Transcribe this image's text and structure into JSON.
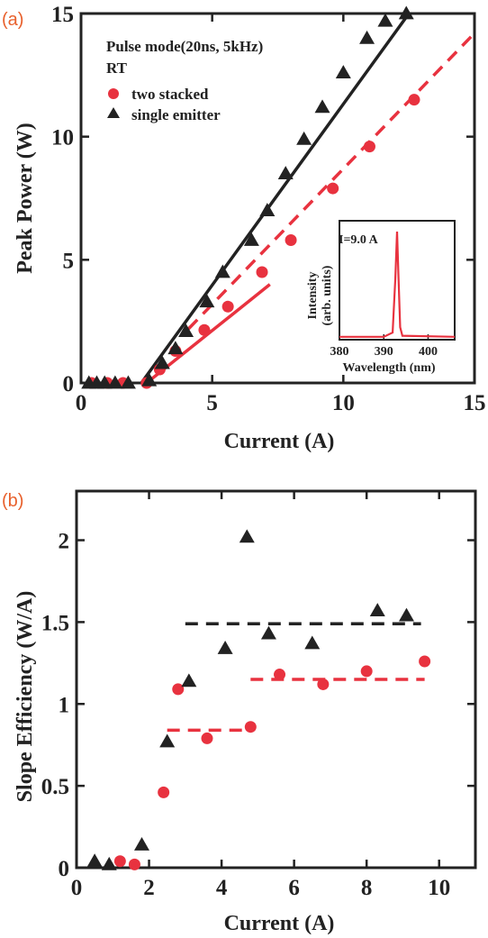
{
  "colors": {
    "red": "#e8323f",
    "black": "#222222",
    "panel_label": "#e8602c"
  },
  "chart_data": [
    {
      "type": "scatter",
      "panel_label": "(a)",
      "xlabel": "Current (A)",
      "ylabel": "Peak Power (W)",
      "xlim": [
        0,
        15
      ],
      "ylim": [
        0,
        15
      ],
      "xticks": [
        0,
        5,
        10,
        15
      ],
      "yticks": [
        0,
        5,
        10,
        15
      ],
      "annotations": [
        "Pulse mode(20ns, 5kHz)",
        "RT"
      ],
      "series": [
        {
          "name": "two stacked",
          "marker": "circle",
          "color": "#e8323f",
          "x": [
            0.4,
            1.0,
            1.6,
            2.5,
            3.0,
            3.6,
            4.7,
            5.6,
            6.9,
            8.0,
            9.6,
            11.0,
            12.7
          ],
          "y": [
            0,
            0,
            0,
            0,
            0.55,
            1.3,
            2.15,
            3.1,
            4.5,
            5.8,
            7.9,
            9.6,
            11.5
          ]
        },
        {
          "name": "single emitter",
          "marker": "triangle",
          "color": "#222222",
          "x": [
            0.3,
            0.6,
            0.9,
            1.3,
            1.8,
            2.6,
            3.1,
            3.6,
            4.0,
            4.8,
            5.4,
            6.5,
            7.1,
            7.8,
            8.5,
            9.2,
            10.0,
            10.9,
            11.6,
            12.4
          ],
          "y": [
            0,
            0,
            0,
            0,
            0,
            0.1,
            0.8,
            1.4,
            2.1,
            3.3,
            4.5,
            5.8,
            7.0,
            8.5,
            9.9,
            11.2,
            12.6,
            14.0,
            14.7,
            15.0
          ]
        }
      ],
      "fit_lines": [
        {
          "series": "single emitter",
          "style": "solid",
          "color": "#222222",
          "x": [
            2.3,
            12.5
          ],
          "y": [
            0,
            15.0
          ]
        },
        {
          "series": "two stacked",
          "style": "solid",
          "color": "#e8323f",
          "x": [
            2.5,
            7.2
          ],
          "y": [
            0,
            4.0
          ]
        },
        {
          "series": "two stacked",
          "style": "dashed",
          "color": "#e8323f",
          "x": [
            4.1,
            15.0
          ],
          "y": [
            2.2,
            14.2
          ]
        }
      ],
      "inset": {
        "annotation": "I=9.0 A",
        "xlabel": "Wavelength (nm)",
        "ylabel_line1": "Intensity",
        "ylabel_line2": "(arb. units)",
        "xlim": [
          380,
          406
        ],
        "xticks": [
          380,
          390,
          400
        ],
        "spectrum": {
          "x": [
            380,
            390,
            392,
            392.6,
            393.0,
            393.3,
            393.7,
            394.2,
            406
          ],
          "y": [
            0.01,
            0.01,
            0.05,
            0.55,
            1.0,
            0.6,
            0.1,
            0.02,
            0.01
          ]
        }
      }
    },
    {
      "type": "scatter",
      "panel_label": "(b)",
      "xlabel": "Current (A)",
      "ylabel": "Slope Efficiency (W/A)",
      "xlim": [
        0,
        11
      ],
      "ylim": [
        0,
        2.3
      ],
      "xticks": [
        0,
        2,
        4,
        6,
        8,
        10
      ],
      "yticks": [
        0,
        0.5,
        1,
        1.5,
        2
      ],
      "ytick_labels": [
        "0",
        "0.5",
        "1",
        "1.5",
        "2"
      ],
      "series": [
        {
          "name": "two stacked",
          "marker": "circle",
          "color": "#e8323f",
          "x": [
            1.2,
            1.6,
            2.4,
            2.8,
            3.6,
            4.8,
            5.6,
            6.8,
            8.0,
            9.6
          ],
          "y": [
            0.04,
            0.02,
            0.46,
            1.09,
            0.79,
            0.86,
            1.18,
            1.12,
            1.2,
            1.26
          ]
        },
        {
          "name": "single emitter",
          "marker": "triangle",
          "color": "#222222",
          "x": [
            0.5,
            0.9,
            1.8,
            2.5,
            3.1,
            4.1,
            4.7,
            5.3,
            6.5,
            8.3,
            9.1
          ],
          "y": [
            0.04,
            0.02,
            0.14,
            0.77,
            1.14,
            1.34,
            2.02,
            1.43,
            1.37,
            1.57,
            1.54
          ]
        }
      ],
      "fit_lines": [
        {
          "series": "single emitter",
          "style": "dashed",
          "color": "#222222",
          "x": [
            3.0,
            9.5
          ],
          "y": [
            1.49,
            1.49
          ]
        },
        {
          "series": "two stacked",
          "style": "dashed",
          "color": "#e8323f",
          "x": [
            2.5,
            4.6
          ],
          "y": [
            0.84,
            0.84
          ]
        },
        {
          "series": "two stacked",
          "style": "dashed",
          "color": "#e8323f",
          "x": [
            4.8,
            9.6
          ],
          "y": [
            1.15,
            1.15
          ]
        }
      ]
    }
  ]
}
